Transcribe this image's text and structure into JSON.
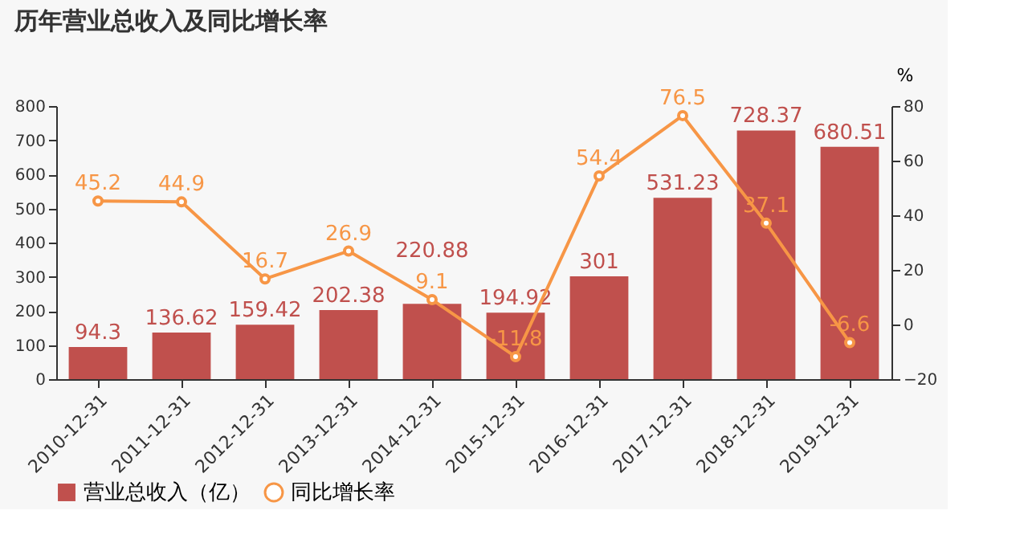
{
  "chart_data": {
    "type": "bar",
    "title": "历年营业总收入及同比增长率",
    "y2label": "%",
    "categories": [
      "2010-12-31",
      "2011-12-31",
      "2012-12-31",
      "2013-12-31",
      "2014-12-31",
      "2015-12-31",
      "2016-12-31",
      "2017-12-31",
      "2018-12-31",
      "2019-12-31"
    ],
    "series": [
      {
        "name": "营业总收入（亿）",
        "color": "#c0504d",
        "values": [
          94.3,
          136.62,
          159.42,
          202.38,
          220.88,
          194.92,
          301,
          531.23,
          728.37,
          680.51
        ]
      },
      {
        "name": "同比增长率",
        "type": "line",
        "axis": "y2",
        "color": "#f79646",
        "marker": "circle",
        "values": [
          45.2,
          44.9,
          16.7,
          26.9,
          9.1,
          -11.8,
          54.4,
          76.5,
          37.1,
          -6.6
        ]
      }
    ],
    "ylim": [
      0,
      800
    ],
    "yticks": [
      0,
      100,
      200,
      300,
      400,
      500,
      600,
      700,
      800
    ],
    "y2lim": [
      -20,
      80
    ],
    "y2ticks": [
      -20,
      0,
      20,
      40,
      60,
      80
    ],
    "data_labels": true,
    "legend": "bottom",
    "grid": false
  }
}
